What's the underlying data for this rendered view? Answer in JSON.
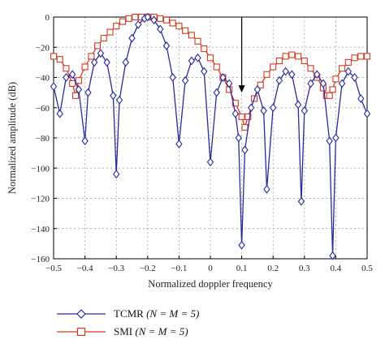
{
  "chart_data": {
    "type": "line",
    "xlabel": "Normalized doppler frequency",
    "ylabel": "Normalized amplitude (dB)",
    "xlim": [
      -0.5,
      0.5
    ],
    "ylim": [
      -160,
      0
    ],
    "xticks": [
      "−0.5",
      "−0.4",
      "−0.3",
      "−0.2",
      "−0.1",
      "0",
      "0.1",
      "0.2",
      "0.3",
      "0.4",
      "0.5"
    ],
    "xtick_values": [
      -0.5,
      -0.4,
      -0.3,
      -0.2,
      -0.1,
      0,
      0.1,
      0.2,
      0.3,
      0.4,
      0.5
    ],
    "yticks": [
      "0",
      "−20",
      "−40",
      "−60",
      "−80",
      "−100",
      "−120",
      "−140",
      "−160"
    ],
    "ytick_values": [
      0,
      -20,
      -40,
      -60,
      -80,
      -100,
      -120,
      -140,
      -160
    ],
    "grid": true,
    "legend_position": "bottom-left",
    "annotation": {
      "type": "arrow",
      "x": 0.1,
      "y_from": 0,
      "y_to": -50
    },
    "series": [
      {
        "name": "TCMR",
        "name_suffix": "(N = M = 5)",
        "color": "#2a2aa0",
        "marker": "diamond",
        "points": [
          [
            -0.5,
            -46
          ],
          [
            -0.48,
            -64
          ],
          [
            -0.46,
            -40
          ],
          [
            -0.44,
            -38
          ],
          [
            -0.42,
            -48
          ],
          [
            -0.4,
            -82
          ],
          [
            -0.39,
            -50
          ],
          [
            -0.37,
            -30
          ],
          [
            -0.35,
            -24
          ],
          [
            -0.33,
            -30
          ],
          [
            -0.31,
            -52
          ],
          [
            -0.3,
            -104
          ],
          [
            -0.29,
            -55
          ],
          [
            -0.27,
            -30
          ],
          [
            -0.25,
            -14
          ],
          [
            -0.23,
            -5
          ],
          [
            -0.21,
            -1
          ],
          [
            -0.2,
            0
          ],
          [
            -0.18,
            -2
          ],
          [
            -0.16,
            -8
          ],
          [
            -0.14,
            -19
          ],
          [
            -0.12,
            -40
          ],
          [
            -0.1,
            -84
          ],
          [
            -0.08,
            -42
          ],
          [
            -0.06,
            -29
          ],
          [
            -0.04,
            -27
          ],
          [
            -0.02,
            -36
          ],
          [
            0.0,
            -96
          ],
          [
            0.02,
            -50
          ],
          [
            0.04,
            -40
          ],
          [
            0.06,
            -44
          ],
          [
            0.08,
            -64
          ],
          [
            0.09,
            -80
          ],
          [
            0.1,
            -151
          ],
          [
            0.11,
            -88
          ],
          [
            0.13,
            -60
          ],
          [
            0.15,
            -48
          ],
          [
            0.17,
            -62
          ],
          [
            0.18,
            -114
          ],
          [
            0.2,
            -60
          ],
          [
            0.22,
            -42
          ],
          [
            0.24,
            -36
          ],
          [
            0.26,
            -38
          ],
          [
            0.28,
            -58
          ],
          [
            0.29,
            -122
          ],
          [
            0.3,
            -62
          ],
          [
            0.32,
            -44
          ],
          [
            0.34,
            -38
          ],
          [
            0.36,
            -44
          ],
          [
            0.38,
            -82
          ],
          [
            0.39,
            -158
          ],
          [
            0.4,
            -80
          ],
          [
            0.42,
            -44
          ],
          [
            0.44,
            -36
          ],
          [
            0.46,
            -40
          ],
          [
            0.48,
            -54
          ],
          [
            0.5,
            -64
          ]
        ]
      },
      {
        "name": "SMI",
        "name_suffix": "(N = M = 5)",
        "color": "#d6391f",
        "marker": "square",
        "points": [
          [
            -0.5,
            -26
          ],
          [
            -0.48,
            -28
          ],
          [
            -0.46,
            -34
          ],
          [
            -0.44,
            -44
          ],
          [
            -0.43,
            -52
          ],
          [
            -0.42,
            -42
          ],
          [
            -0.4,
            -33
          ],
          [
            -0.38,
            -26
          ],
          [
            -0.36,
            -19
          ],
          [
            -0.34,
            -14
          ],
          [
            -0.32,
            -10
          ],
          [
            -0.3,
            -6
          ],
          [
            -0.28,
            -3
          ],
          [
            -0.26,
            -1
          ],
          [
            -0.24,
            0
          ],
          [
            -0.22,
            0
          ],
          [
            -0.2,
            0
          ],
          [
            -0.18,
            0
          ],
          [
            -0.16,
            -1
          ],
          [
            -0.14,
            -2
          ],
          [
            -0.12,
            -4
          ],
          [
            -0.1,
            -6
          ],
          [
            -0.08,
            -9
          ],
          [
            -0.06,
            -12
          ],
          [
            -0.04,
            -16
          ],
          [
            -0.02,
            -21
          ],
          [
            0.0,
            -27
          ],
          [
            0.02,
            -33
          ],
          [
            0.04,
            -40
          ],
          [
            0.06,
            -48
          ],
          [
            0.08,
            -57
          ],
          [
            0.1,
            -66
          ],
          [
            0.11,
            -73
          ],
          [
            0.12,
            -66
          ],
          [
            0.14,
            -54
          ],
          [
            0.16,
            -45
          ],
          [
            0.18,
            -38
          ],
          [
            0.2,
            -33
          ],
          [
            0.22,
            -29
          ],
          [
            0.24,
            -26
          ],
          [
            0.26,
            -25
          ],
          [
            0.28,
            -26
          ],
          [
            0.3,
            -29
          ],
          [
            0.32,
            -34
          ],
          [
            0.34,
            -40
          ],
          [
            0.36,
            -47
          ],
          [
            0.37,
            -52
          ],
          [
            0.38,
            -52
          ],
          [
            0.39,
            -48
          ],
          [
            0.4,
            -41
          ],
          [
            0.42,
            -34
          ],
          [
            0.44,
            -30
          ],
          [
            0.46,
            -27
          ],
          [
            0.48,
            -26
          ],
          [
            0.5,
            -26
          ]
        ]
      }
    ]
  }
}
